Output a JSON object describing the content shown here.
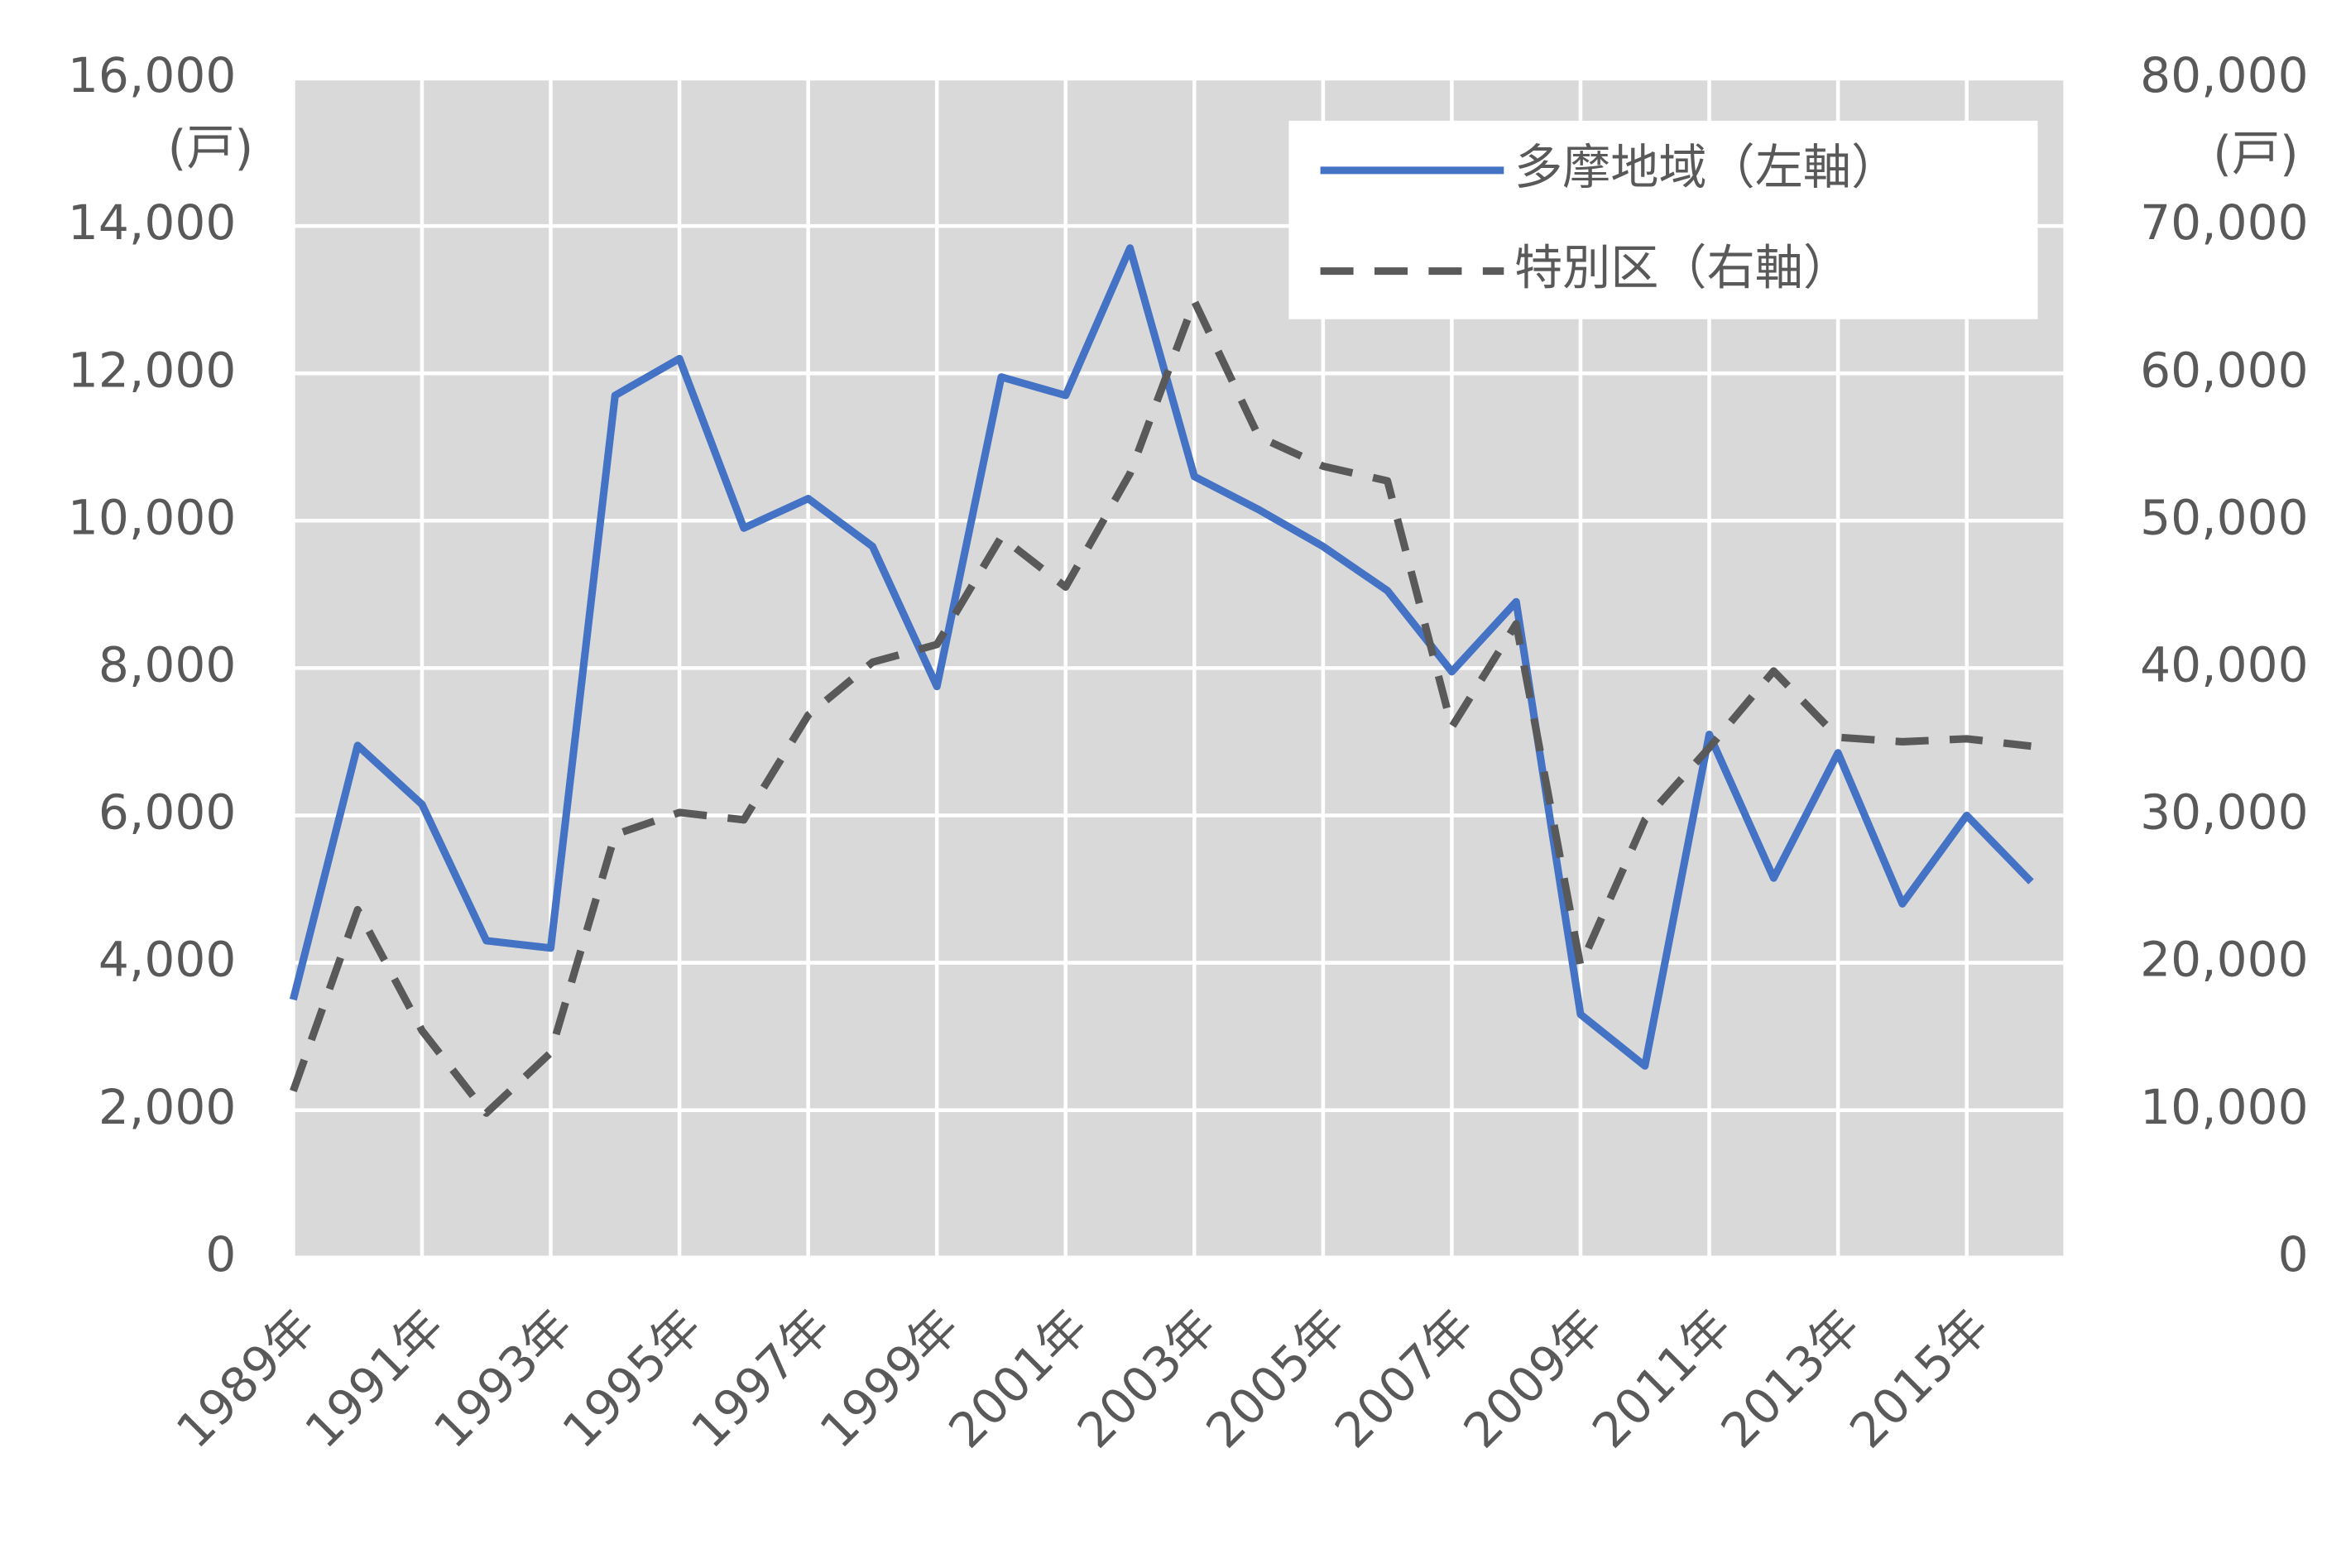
{
  "chart_data": {
    "type": "line",
    "categories": [
      "1989年",
      null,
      "1991年",
      null,
      "1993年",
      null,
      "1995年",
      null,
      "1997年",
      null,
      "1999年",
      null,
      "2001年",
      null,
      "2003年",
      null,
      "2005年",
      null,
      "2007年",
      null,
      "2009年",
      null,
      "2011年",
      null,
      "2013年",
      null,
      "2015年",
      null
    ],
    "series": [
      {
        "name": "多摩地域（左軸）",
        "color": "#4472c4",
        "dash": false,
        "values": [
          3500,
          6950,
          6150,
          4300,
          4200,
          11700,
          12200,
          9900,
          10300,
          9650,
          7750,
          11950,
          11700,
          13700,
          10600,
          10150,
          9650,
          9050,
          7950,
          8900,
          3300,
          2600,
          7100,
          5150,
          6850,
          4800,
          6000,
          5100
        ]
      },
      {
        "name": "特別区（右軸）",
        "color": "#595959",
        "dash": true,
        "axis": "y2",
        "values": [
          11300,
          23600,
          15400,
          9800,
          13900,
          28700,
          30200,
          29700,
          36800,
          40400,
          41600,
          48900,
          45500,
          53200,
          64900,
          55700,
          53700,
          52700,
          36000,
          43000,
          19800,
          29700,
          34600,
          39800,
          35300,
          35000,
          35200,
          34700
        ]
      }
    ],
    "ylabel": "(戸)",
    "y2label": "(戸)",
    "ylim": [
      0,
      16000
    ],
    "yticks": [
      0,
      {
        "value": 2000,
        "label": "2,000"
      },
      {
        "value": 4000,
        "label": "4,000"
      },
      {
        "value": 6000,
        "label": "6,000"
      },
      {
        "value": 8000,
        "label": "8,000"
      },
      {
        "value": 10000,
        "label": "10,000"
      },
      {
        "value": 12000,
        "label": "12,000"
      },
      {
        "value": 14000,
        "label": "14,000"
      },
      {
        "value": 16000,
        "label": "16,000"
      }
    ],
    "y2lim": [
      0,
      80000
    ],
    "y2ticks": [
      0,
      {
        "value": 10000,
        "label": "10,000"
      },
      {
        "value": 20000,
        "label": "20,000"
      },
      {
        "value": 30000,
        "label": "30,000"
      },
      {
        "value": 40000,
        "label": "40,000"
      },
      {
        "value": 50000,
        "label": "50,000"
      },
      {
        "value": 60000,
        "label": "60,000"
      },
      {
        "value": 70000,
        "label": "70,000"
      },
      {
        "value": 80000,
        "label": "80,000"
      }
    ],
    "grid": true,
    "legend": "upper right"
  }
}
